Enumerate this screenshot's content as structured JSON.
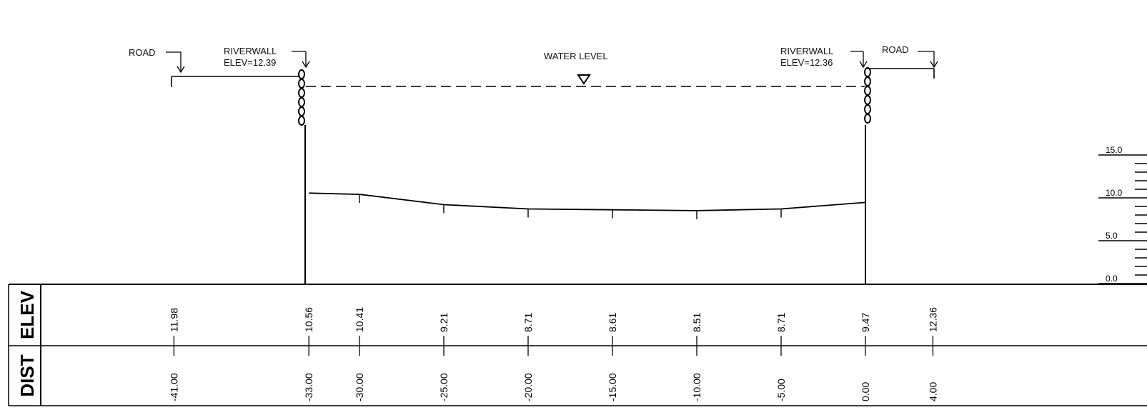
{
  "labels": {
    "road_left": "ROAD",
    "road_right": "ROAD",
    "riverwall_left": "RIVERWALL",
    "riverwall_left_elev": "ELEV=12.39",
    "riverwall_right": "RIVERWALL",
    "riverwall_right_elev": "ELEV=12.36",
    "water_level": "WATER LEVEL"
  },
  "table": {
    "elev_header": "ELEV",
    "dist_header": "DIST"
  },
  "stations": [
    {
      "dist": "-41.00",
      "elev": "11.98"
    },
    {
      "dist": "-33.00",
      "elev": "10.56"
    },
    {
      "dist": "-30.00",
      "elev": "10.41"
    },
    {
      "dist": "-25.00",
      "elev": "9.21"
    },
    {
      "dist": "-20.00",
      "elev": "8.71"
    },
    {
      "dist": "-15.00",
      "elev": "8.61"
    },
    {
      "dist": "-10.00",
      "elev": "8.51"
    },
    {
      "dist": "-5.00",
      "elev": "8.71"
    },
    {
      "dist": "0.00",
      "elev": "9.47"
    },
    {
      "dist": "4.00",
      "elev": "12.36"
    }
  ],
  "scale": {
    "ticks": [
      "15.0",
      "10.0",
      "5.0",
      "0.0"
    ]
  }
}
